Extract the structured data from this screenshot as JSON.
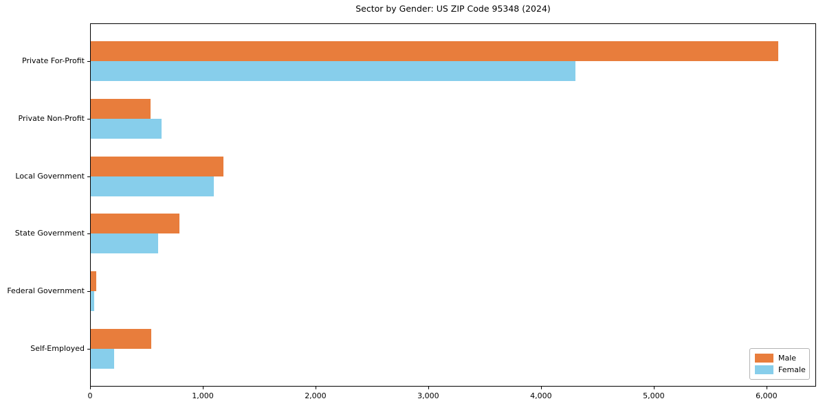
{
  "title": "Sector by Gender: US ZIP Code 95348 (2024)",
  "chart_data": {
    "type": "bar",
    "orientation": "horizontal",
    "title": "Sector by Gender: US ZIP Code 95348 (2024)",
    "categories": [
      "Private For-Profit",
      "Private Non-Profit",
      "Local Government",
      "State Government",
      "Federal Government",
      "Self-Employed"
    ],
    "series": [
      {
        "name": "Male",
        "color": "#E87D3C",
        "values": [
          6100,
          530,
          1175,
          785,
          50,
          535
        ]
      },
      {
        "name": "Female",
        "color": "#87CEEB",
        "values": [
          4300,
          630,
          1090,
          600,
          30,
          210
        ]
      }
    ],
    "xlabel": "",
    "ylabel": "",
    "xlim": [
      0,
      6440
    ],
    "x_ticks": [
      0,
      1000,
      2000,
      3000,
      4000,
      5000,
      6000
    ],
    "x_tick_labels": [
      "0",
      "1,000",
      "2,000",
      "3,000",
      "4,000",
      "5,000",
      "6,000"
    ],
    "grid": false,
    "legend": {
      "position": "lower right",
      "entries": [
        "Male",
        "Female"
      ]
    }
  }
}
